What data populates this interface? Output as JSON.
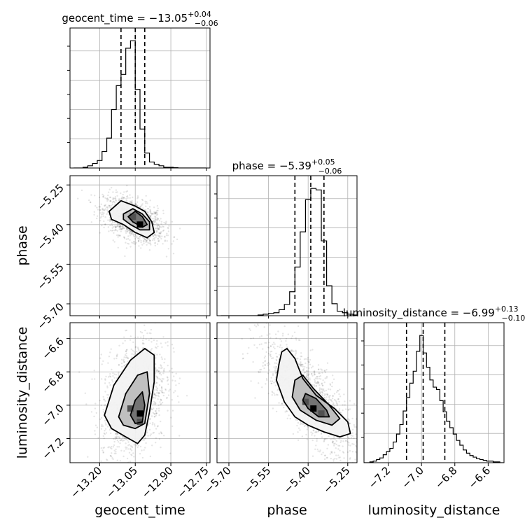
{
  "chart_data": {
    "type": "corner",
    "grid": true,
    "params": [
      {
        "name": "geocent_time",
        "label": "geocent_time",
        "median": -13.05,
        "plus": "0.04",
        "minus": "0.06",
        "title_main": "geocent_time = −13.05",
        "title_sup": "+0.04",
        "title_sub": "−0.06",
        "range": [
          -13.325,
          -12.735
        ],
        "ticks": [
          -13.2,
          -13.05,
          -12.9,
          -12.75
        ],
        "tick_labels": [
          "−13.20",
          "−13.05",
          "−12.90",
          "−12.75"
        ],
        "quantiles": [
          -13.11,
          -13.05,
          -13.01
        ]
      },
      {
        "name": "phase",
        "label": "phase",
        "median": -5.39,
        "plus": "0.05",
        "minus": "0.06",
        "title_main": "phase = −5.39",
        "title_sup": "+0.05",
        "title_sub": "−0.06",
        "range": [
          -5.745,
          -5.215
        ],
        "ticks": [
          -5.7,
          -5.55,
          -5.4,
          -5.25
        ],
        "tick_labels": [
          "−5.70",
          "−5.55",
          "−5.40",
          "−5.25"
        ],
        "quantiles": [
          -5.45,
          -5.39,
          -5.34
        ]
      },
      {
        "name": "luminosity_distance",
        "label": "luminosity_distance",
        "median": -6.99,
        "plus": "0.13",
        "minus": "0.10",
        "title_main": "luminosity_distance = −6.99",
        "title_sup": "+0.13",
        "title_sub": "−0.10",
        "range": [
          -7.345,
          -6.505
        ],
        "ticks": [
          -7.2,
          -7.0,
          -6.8,
          -6.6
        ],
        "tick_labels": [
          "−7.2",
          "−7.0",
          "−6.8",
          "−6.6"
        ],
        "quantiles": [
          -7.09,
          -6.99,
          -6.86
        ]
      }
    ],
    "hist1d": [
      {
        "x": [
          -13.3,
          -13.28,
          -13.26,
          -13.24,
          -13.22,
          -13.2,
          -13.18,
          -13.16,
          -13.14,
          -13.12,
          -13.1,
          -13.08,
          -13.06,
          -13.04,
          -13.02,
          -13.0,
          -12.98,
          -12.96,
          -12.94,
          -12.92,
          -12.9,
          -12.88,
          -12.86,
          -12.84,
          -12.82,
          -12.8,
          -12.78,
          -12.76
        ],
        "values": [
          0,
          0,
          1,
          3,
          6,
          10,
          22,
          40,
          78,
          110,
          125,
          160,
          170,
          105,
          52,
          20,
          8,
          5,
          3,
          1,
          1,
          0.5,
          0,
          0,
          0,
          0,
          0,
          0
        ]
      },
      {
        "x": [
          -5.72,
          -5.7,
          -5.68,
          -5.66,
          -5.64,
          -5.62,
          -5.6,
          -5.58,
          -5.56,
          -5.54,
          -5.52,
          -5.5,
          -5.48,
          -5.46,
          -5.44,
          -5.42,
          -5.4,
          -5.38,
          -5.36,
          -5.34,
          -5.32,
          -5.3,
          -5.28,
          -5.26,
          -5.24,
          -5.22
        ],
        "values": [
          0,
          0,
          0,
          0,
          0,
          0,
          0,
          1,
          2,
          3,
          4,
          8,
          15,
          32,
          65,
          112,
          155,
          170,
          168,
          100,
          40,
          16,
          6,
          4,
          2,
          1
        ]
      },
      {
        "x": [
          -7.34,
          -7.32,
          -7.3,
          -7.28,
          -7.26,
          -7.24,
          -7.22,
          -7.2,
          -7.18,
          -7.16,
          -7.14,
          -7.12,
          -7.1,
          -7.08,
          -7.06,
          -7.04,
          -7.02,
          -7.0,
          -6.98,
          -6.96,
          -6.94,
          -6.92,
          -6.9,
          -6.88,
          -6.86,
          -6.84,
          -6.82,
          -6.8,
          -6.78,
          -6.76,
          -6.74,
          -6.72,
          -6.7,
          -6.68,
          -6.66,
          -6.64,
          -6.62,
          -6.6,
          -6.58,
          -6.56,
          -6.54,
          -6.52
        ],
        "values": [
          0,
          0,
          1,
          2,
          4,
          6,
          10,
          14,
          18,
          26,
          36,
          48,
          65,
          82,
          100,
          115,
          140,
          160,
          138,
          120,
          104,
          95,
          92,
          78,
          64,
          52,
          44,
          36,
          28,
          22,
          16,
          12,
          9,
          7,
          5,
          4,
          3,
          2,
          2,
          1,
          1,
          0
        ]
      }
    ],
    "scatter2d": [
      {
        "x_param": "geocent_time",
        "y_param": "phase",
        "peak": [
          -13.03,
          -5.4
        ],
        "hist_peak_cells": [
          [
            -13.03,
            -5.4
          ],
          [
            -13.06,
            -5.37
          ]
        ],
        "contours": [
          [
            [
              -13.16,
              -5.35
            ],
            [
              -13.11,
              -5.31
            ],
            [
              -13.05,
              -5.33
            ],
            [
              -13.01,
              -5.35
            ],
            [
              -12.98,
              -5.39
            ],
            [
              -12.97,
              -5.43
            ],
            [
              -13.0,
              -5.45
            ],
            [
              -13.05,
              -5.43
            ],
            [
              -13.1,
              -5.4
            ],
            [
              -13.15,
              -5.38
            ]
          ],
          [
            [
              -13.1,
              -5.36
            ],
            [
              -13.06,
              -5.34
            ],
            [
              -13.02,
              -5.36
            ],
            [
              -12.99,
              -5.39
            ],
            [
              -12.99,
              -5.42
            ],
            [
              -13.03,
              -5.42
            ],
            [
              -13.07,
              -5.4
            ],
            [
              -13.1,
              -5.38
            ]
          ],
          [
            [
              -13.08,
              -5.37
            ],
            [
              -13.05,
              -5.35
            ],
            [
              -13.02,
              -5.37
            ],
            [
              -13.0,
              -5.4
            ],
            [
              -13.02,
              -5.41
            ],
            [
              -13.06,
              -5.39
            ]
          ]
        ]
      },
      {
        "x_param": "geocent_time",
        "y_param": "luminosity_distance",
        "peak": [
          -13.03,
          -7.05
        ],
        "hist_peak_cells": [
          [
            -13.03,
            -7.05
          ],
          [
            -13.03,
            -7.1
          ],
          [
            -13.07,
            -7.02
          ]
        ],
        "contours": [
          [
            [
              -13.18,
              -7.06
            ],
            [
              -13.14,
              -6.88
            ],
            [
              -13.07,
              -6.73
            ],
            [
              -13.01,
              -6.66
            ],
            [
              -12.97,
              -6.7
            ],
            [
              -12.97,
              -6.86
            ],
            [
              -12.99,
              -7.04
            ],
            [
              -13.01,
              -7.18
            ],
            [
              -13.04,
              -7.23
            ],
            [
              -13.09,
              -7.19
            ],
            [
              -13.15,
              -7.14
            ]
          ],
          [
            [
              -13.12,
              -7.07
            ],
            [
              -13.09,
              -6.93
            ],
            [
              -13.04,
              -6.82
            ],
            [
              -13.0,
              -6.8
            ],
            [
              -12.99,
              -6.93
            ],
            [
              -13.01,
              -7.11
            ],
            [
              -13.05,
              -7.14
            ],
            [
              -13.1,
              -7.12
            ]
          ],
          [
            [
              -13.07,
              -7.06
            ],
            [
              -13.05,
              -6.97
            ],
            [
              -13.02,
              -6.92
            ],
            [
              -13.01,
              -7.0
            ],
            [
              -13.02,
              -7.1
            ],
            [
              -13.05,
              -7.11
            ]
          ]
        ]
      },
      {
        "x_param": "phase",
        "y_param": "luminosity_distance",
        "peak": [
          -5.38,
          -7.02
        ],
        "hist_peak_cells": [
          [
            -5.38,
            -7.02
          ],
          [
            -5.35,
            -7.05
          ],
          [
            -5.41,
            -6.98
          ]
        ],
        "contours": [
          [
            [
              -5.51,
              -6.75
            ],
            [
              -5.5,
              -6.68
            ],
            [
              -5.48,
              -6.66
            ],
            [
              -5.45,
              -6.72
            ],
            [
              -5.42,
              -6.84
            ],
            [
              -5.37,
              -6.94
            ],
            [
              -5.3,
              -7.02
            ],
            [
              -5.25,
              -7.1
            ],
            [
              -5.24,
              -7.17
            ],
            [
              -5.28,
              -7.19
            ],
            [
              -5.34,
              -7.16
            ],
            [
              -5.4,
              -7.12
            ],
            [
              -5.45,
              -7.07
            ],
            [
              -5.49,
              -6.98
            ],
            [
              -5.52,
              -6.85
            ]
          ],
          [
            [
              -5.45,
              -6.85
            ],
            [
              -5.42,
              -6.82
            ],
            [
              -5.38,
              -6.9
            ],
            [
              -5.32,
              -7.0
            ],
            [
              -5.28,
              -7.08
            ],
            [
              -5.31,
              -7.12
            ],
            [
              -5.37,
              -7.09
            ],
            [
              -5.43,
              -7.03
            ],
            [
              -5.46,
              -6.95
            ]
          ],
          [
            [
              -5.41,
              -6.93
            ],
            [
              -5.37,
              -6.96
            ],
            [
              -5.33,
              -7.03
            ],
            [
              -5.32,
              -7.07
            ],
            [
              -5.36,
              -7.07
            ],
            [
              -5.4,
              -7.02
            ],
            [
              -5.42,
              -6.97
            ]
          ]
        ]
      }
    ]
  }
}
